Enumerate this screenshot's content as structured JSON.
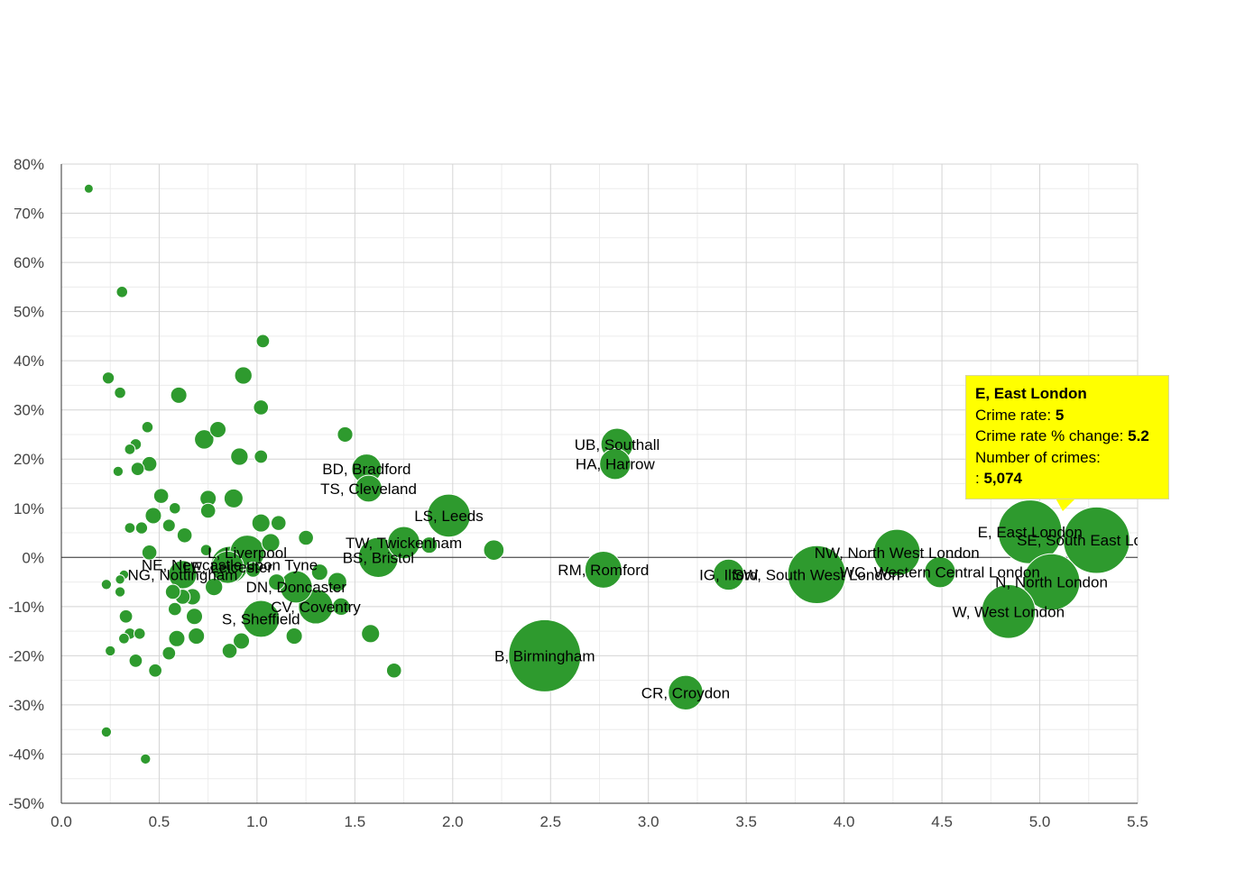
{
  "colors": {
    "bubble_fill": "#2e9a2e",
    "bubble_stroke": "#ffffff",
    "grid": "#d4d4d4",
    "grid_minor": "#ececec",
    "zero_line": "#333333",
    "tooltip_bg": "#ffff00"
  },
  "tooltip": {
    "title": "E, East London",
    "rate_label": "Crime rate:",
    "rate_value": "5",
    "change_label": "Crime rate % change:",
    "change_value": "5.2",
    "count_label": "Number of crimes:",
    "count_prefix": ":",
    "count_value": "5,074"
  },
  "chart_data": {
    "type": "scatter",
    "title": "",
    "xlabel": "",
    "ylabel": "",
    "xlim": [
      0,
      5.5
    ],
    "ylim": [
      -50,
      80
    ],
    "x_ticks": [
      "0.0",
      "0.5",
      "1.0",
      "1.5",
      "2.0",
      "2.5",
      "3.0",
      "3.5",
      "4.0",
      "4.5",
      "5.0",
      "5.5"
    ],
    "y_ticks": [
      "80%",
      "70%",
      "60%",
      "50%",
      "40%",
      "30%",
      "20%",
      "10%",
      "0%",
      "-10%",
      "-20%",
      "-30%",
      "-40%",
      "-50%"
    ],
    "grid": true,
    "points": [
      {
        "label": "E, East London",
        "x": 4.95,
        "y": 5.2,
        "size": 5074
      },
      {
        "label": "SE, South East London",
        "x": 5.29,
        "y": 3.5,
        "size": 5500
      },
      {
        "label": "N, North London",
        "x": 5.06,
        "y": -5,
        "size": 4000
      },
      {
        "label": "W, West London",
        "x": 4.84,
        "y": -11,
        "size": 3600
      },
      {
        "label": "NW, North West London",
        "x": 4.27,
        "y": 1,
        "size": 2700
      },
      {
        "label": "WC, Western Central London",
        "x": 4.49,
        "y": -3,
        "size": 1200
      },
      {
        "label": "SW, South West London",
        "x": 3.86,
        "y": -3.5,
        "size": 4200
      },
      {
        "label": "IG, Ilford",
        "x": 3.41,
        "y": -3.5,
        "size": 1200
      },
      {
        "label": "CR, Croydon",
        "x": 3.19,
        "y": -27.5,
        "size": 1500
      },
      {
        "label": "RM, Romford",
        "x": 2.77,
        "y": -2.5,
        "size": 1700
      },
      {
        "label": "UB, Southall",
        "x": 2.84,
        "y": 23,
        "size": 1300
      },
      {
        "label": "HA, Harrow",
        "x": 2.83,
        "y": 19,
        "size": 1200
      },
      {
        "label": "B, Birmingham",
        "x": 2.47,
        "y": -20,
        "size": 6500
      },
      {
        "label": "LS, Leeds",
        "x": 1.98,
        "y": 8.5,
        "size": 2300
      },
      {
        "label": "BD, Bradford",
        "x": 1.56,
        "y": 18,
        "size": 1100
      },
      {
        "label": "TS, Cleveland",
        "x": 1.57,
        "y": 14,
        "size": 900
      },
      {
        "label": "TW, Twickenham",
        "x": 1.75,
        "y": 3,
        "size": 1300
      },
      {
        "label": "BS, Bristol",
        "x": 1.62,
        "y": 0,
        "size": 2000
      },
      {
        "label": "CV, Coventry",
        "x": 1.3,
        "y": -10,
        "size": 1500
      },
      {
        "label": "S, Sheffield",
        "x": 1.02,
        "y": -12.5,
        "size": 1700
      },
      {
        "label": "DN, Doncaster",
        "x": 1.2,
        "y": -6,
        "size": 1300
      },
      {
        "label": "NE, Newcastle upon Tyne",
        "x": 0.86,
        "y": -1.5,
        "size": 1700
      },
      {
        "label": "L, Liverpool",
        "x": 0.95,
        "y": 1,
        "size": 1500
      },
      {
        "label": "LE, Leicester",
        "x": 0.85,
        "y": -2,
        "size": 1300
      },
      {
        "label": "NG, Nottingham",
        "x": 0.62,
        "y": -3.5,
        "size": 1000
      },
      {
        "label": "",
        "x": 0.14,
        "y": 75,
        "size": 90
      },
      {
        "label": "",
        "x": 0.31,
        "y": 54,
        "size": 160
      },
      {
        "label": "",
        "x": 1.03,
        "y": 44,
        "size": 220
      },
      {
        "label": "",
        "x": 0.24,
        "y": 36.5,
        "size": 180
      },
      {
        "label": "",
        "x": 0.93,
        "y": 37,
        "size": 380
      },
      {
        "label": "",
        "x": 0.3,
        "y": 33.5,
        "size": 160
      },
      {
        "label": "",
        "x": 0.6,
        "y": 33,
        "size": 330
      },
      {
        "label": "",
        "x": 1.02,
        "y": 30.5,
        "size": 280
      },
      {
        "label": "",
        "x": 0.44,
        "y": 26.5,
        "size": 160
      },
      {
        "label": "",
        "x": 0.8,
        "y": 26,
        "size": 330
      },
      {
        "label": "",
        "x": 1.45,
        "y": 25,
        "size": 300
      },
      {
        "label": "",
        "x": 0.73,
        "y": 24,
        "size": 470
      },
      {
        "label": "",
        "x": 0.38,
        "y": 23,
        "size": 160
      },
      {
        "label": "",
        "x": 0.35,
        "y": 22,
        "size": 140
      },
      {
        "label": "",
        "x": 0.91,
        "y": 20.5,
        "size": 380
      },
      {
        "label": "",
        "x": 1.02,
        "y": 20.5,
        "size": 220
      },
      {
        "label": "",
        "x": 0.45,
        "y": 19,
        "size": 280
      },
      {
        "label": "",
        "x": 0.39,
        "y": 18,
        "size": 220
      },
      {
        "label": "",
        "x": 0.29,
        "y": 17.5,
        "size": 130
      },
      {
        "label": "",
        "x": 0.51,
        "y": 12.5,
        "size": 280
      },
      {
        "label": "",
        "x": 0.75,
        "y": 12,
        "size": 330
      },
      {
        "label": "",
        "x": 0.88,
        "y": 12,
        "size": 450
      },
      {
        "label": "",
        "x": 0.58,
        "y": 10,
        "size": 160
      },
      {
        "label": "",
        "x": 0.75,
        "y": 9.5,
        "size": 280
      },
      {
        "label": "",
        "x": 0.47,
        "y": 8.5,
        "size": 330
      },
      {
        "label": "",
        "x": 1.02,
        "y": 7,
        "size": 410
      },
      {
        "label": "",
        "x": 1.11,
        "y": 7,
        "size": 280
      },
      {
        "label": "",
        "x": 0.55,
        "y": 6.5,
        "size": 200
      },
      {
        "label": "",
        "x": 0.41,
        "y": 6,
        "size": 180
      },
      {
        "label": "",
        "x": 0.35,
        "y": 6,
        "size": 140
      },
      {
        "label": "",
        "x": 0.63,
        "y": 4.5,
        "size": 280
      },
      {
        "label": "",
        "x": 1.25,
        "y": 4,
        "size": 280
      },
      {
        "label": "",
        "x": 1.07,
        "y": 3,
        "size": 410
      },
      {
        "label": "",
        "x": 2.21,
        "y": 1.5,
        "size": 520
      },
      {
        "label": "",
        "x": 1.88,
        "y": 2.5,
        "size": 330
      },
      {
        "label": "",
        "x": 0.74,
        "y": 1.5,
        "size": 160
      },
      {
        "label": "",
        "x": 0.45,
        "y": 1,
        "size": 280
      },
      {
        "label": "",
        "x": 1.41,
        "y": -5,
        "size": 450
      },
      {
        "label": "",
        "x": 1.43,
        "y": -10,
        "size": 380
      },
      {
        "label": "",
        "x": 1.58,
        "y": -15.5,
        "size": 410
      },
      {
        "label": "",
        "x": 1.19,
        "y": -16,
        "size": 330
      },
      {
        "label": "",
        "x": 0.92,
        "y": -17,
        "size": 330
      },
      {
        "label": "",
        "x": 0.59,
        "y": -16.5,
        "size": 330
      },
      {
        "label": "",
        "x": 0.69,
        "y": -16,
        "size": 330
      },
      {
        "label": "",
        "x": 0.68,
        "y": -12,
        "size": 330
      },
      {
        "label": "",
        "x": 0.58,
        "y": -10.5,
        "size": 220
      },
      {
        "label": "",
        "x": 0.67,
        "y": -8,
        "size": 330
      },
      {
        "label": "",
        "x": 0.62,
        "y": -8,
        "size": 280
      },
      {
        "label": "",
        "x": 0.57,
        "y": -7,
        "size": 280
      },
      {
        "label": "",
        "x": 0.78,
        "y": -6,
        "size": 380
      },
      {
        "label": "",
        "x": 0.32,
        "y": -3.5,
        "size": 110
      },
      {
        "label": "",
        "x": 0.3,
        "y": -4.5,
        "size": 110
      },
      {
        "label": "",
        "x": 0.23,
        "y": -5.5,
        "size": 130
      },
      {
        "label": "",
        "x": 0.3,
        "y": -7,
        "size": 130
      },
      {
        "label": "",
        "x": 0.33,
        "y": -12,
        "size": 220
      },
      {
        "label": "",
        "x": 0.35,
        "y": -15.5,
        "size": 160
      },
      {
        "label": "",
        "x": 0.32,
        "y": -16.5,
        "size": 140
      },
      {
        "label": "",
        "x": 0.4,
        "y": -15.5,
        "size": 160
      },
      {
        "label": "",
        "x": 0.25,
        "y": -19,
        "size": 130
      },
      {
        "label": "",
        "x": 0.38,
        "y": -21,
        "size": 220
      },
      {
        "label": "",
        "x": 0.55,
        "y": -19.5,
        "size": 220
      },
      {
        "label": "",
        "x": 0.86,
        "y": -19,
        "size": 280
      },
      {
        "label": "",
        "x": 0.48,
        "y": -23,
        "size": 220
      },
      {
        "label": "",
        "x": 1.7,
        "y": -23,
        "size": 280
      },
      {
        "label": "",
        "x": 0.23,
        "y": -35.5,
        "size": 130
      },
      {
        "label": "",
        "x": 0.43,
        "y": -41,
        "size": 130
      },
      {
        "label": "",
        "x": 1.32,
        "y": -3,
        "size": 330
      },
      {
        "label": "",
        "x": 1.1,
        "y": -5,
        "size": 330
      },
      {
        "label": "",
        "x": 0.98,
        "y": -2.5,
        "size": 280
      }
    ]
  }
}
